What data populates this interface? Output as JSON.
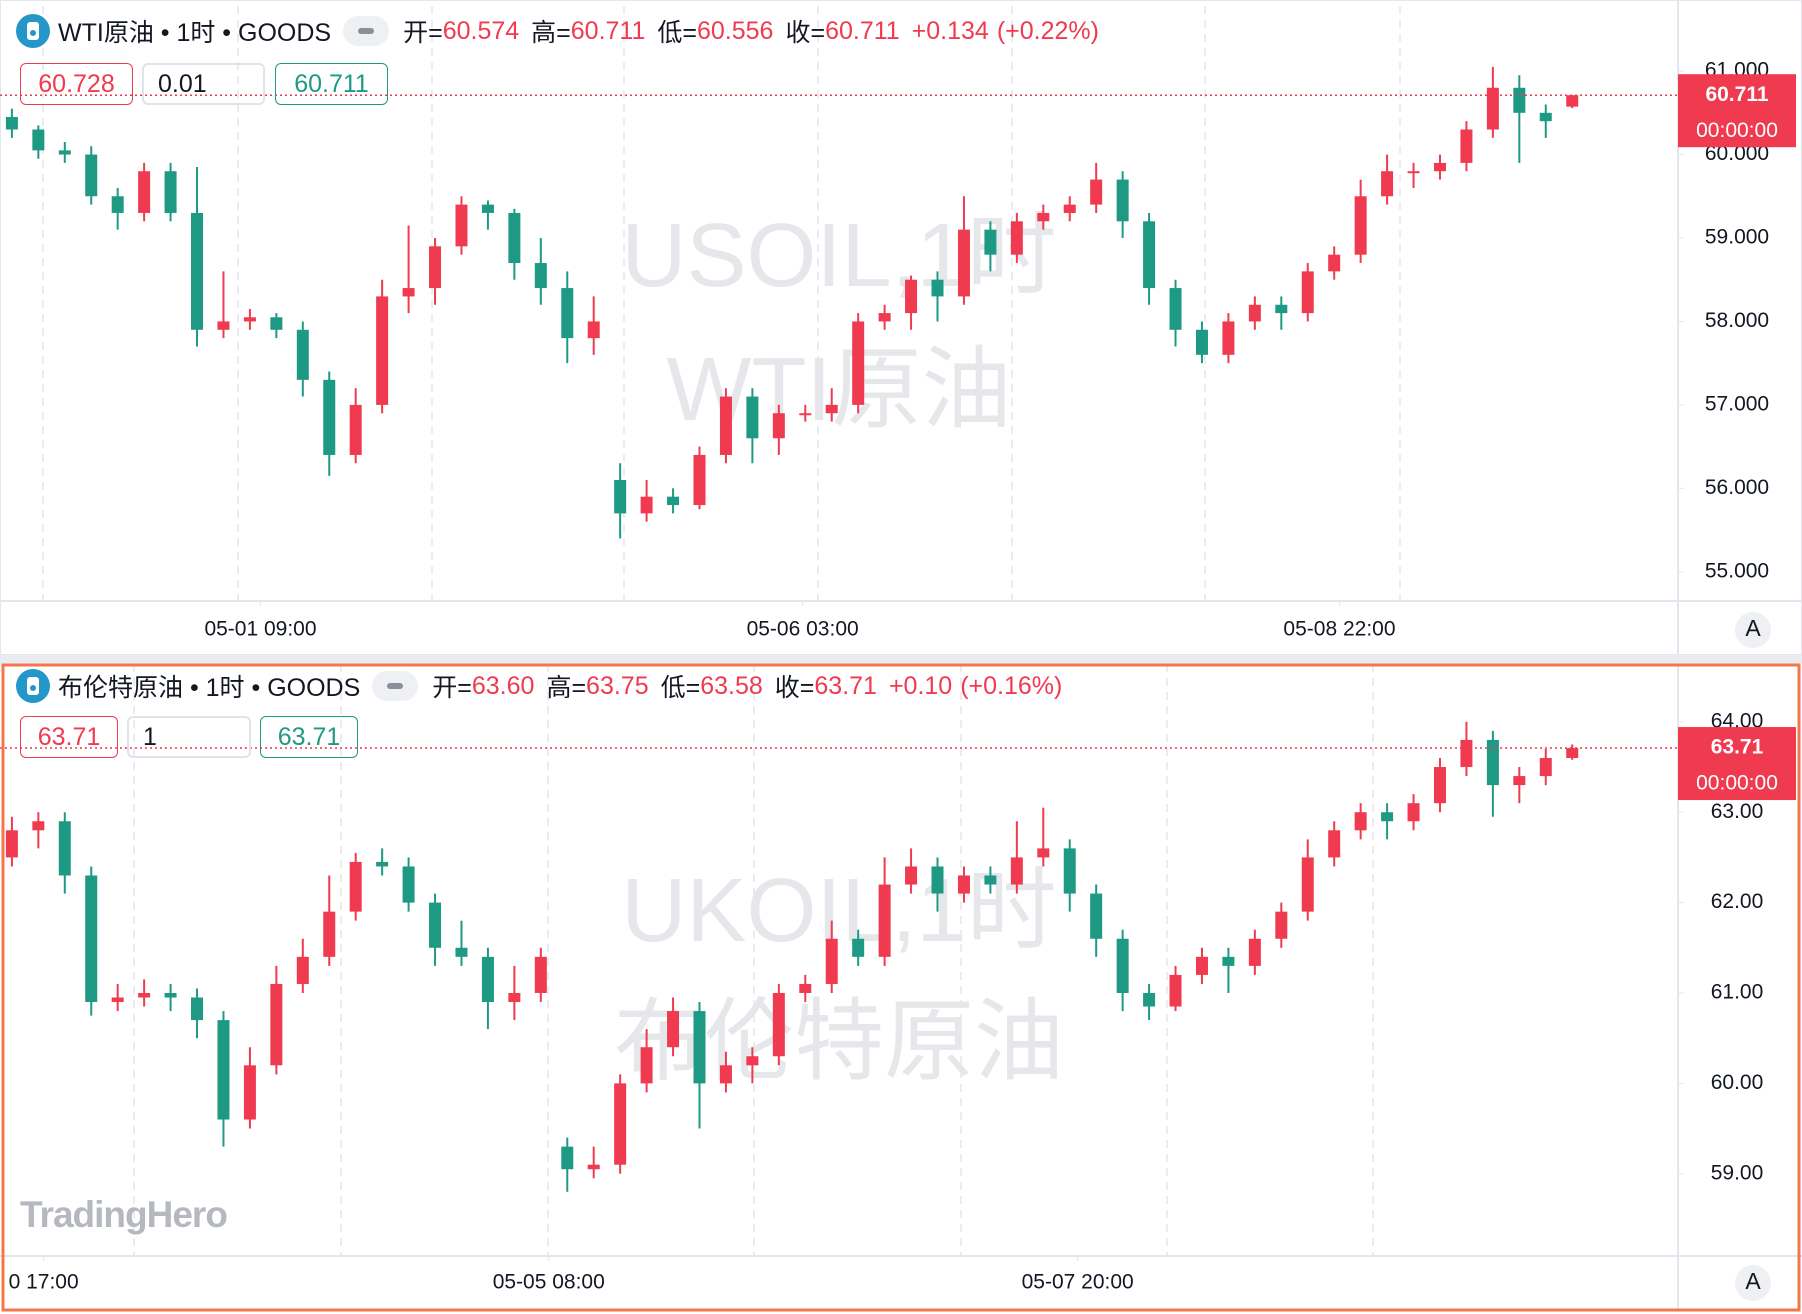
{
  "chart_data": [
    {
      "type": "candlestick",
      "title": "WTI原油 • 1时 • GOODS",
      "legend": {
        "open_label": "开=",
        "open": "60.574",
        "high_label": "高=",
        "high": "60.711",
        "low_label": "低=",
        "low": "60.556",
        "close_label": "收=",
        "close": "60.711",
        "change": "+0.134",
        "change_pct": "(+0.22%)"
      },
      "order": {
        "bid": "60.728",
        "qty": "0.01",
        "ask": "60.711"
      },
      "watermark": [
        "USOIL,1时",
        "WTI原油"
      ],
      "last_price": {
        "value": 60.711,
        "label": "60.711"
      },
      "countdown": "00:00:00",
      "axis_mode": "A",
      "up_color": "#ef3a4f",
      "down_color": "#1e9a84",
      "ylim": [
        54.65,
        61.78
      ],
      "yticks": [
        {
          "value": 55,
          "label": "55.000"
        },
        {
          "value": 56,
          "label": "56.000"
        },
        {
          "value": 57,
          "label": "57.000"
        },
        {
          "value": 58,
          "label": "58.000"
        },
        {
          "value": 59,
          "label": "59.000"
        },
        {
          "value": 60,
          "label": "60.000"
        },
        {
          "value": 61,
          "label": "61.000"
        }
      ],
      "xlim": [
        -0.45,
        63
      ],
      "xticks": [
        {
          "value": 9.4,
          "label": "05-01 09:00"
        },
        {
          "value": 29.9,
          "label": "05-06 03:00"
        },
        {
          "value": 50.2,
          "label": "05-08 22:00"
        }
      ],
      "ohlc": [
        [
          60.45,
          60.55,
          60.2,
          60.3
        ],
        [
          60.3,
          60.35,
          59.95,
          60.05
        ],
        [
          60.05,
          60.15,
          59.9,
          60.0
        ],
        [
          60.0,
          60.1,
          59.4,
          59.5
        ],
        [
          59.5,
          59.6,
          59.1,
          59.3
        ],
        [
          59.3,
          59.9,
          59.2,
          59.8
        ],
        [
          59.8,
          59.9,
          59.2,
          59.3
        ],
        [
          59.3,
          59.85,
          57.7,
          57.9
        ],
        [
          57.9,
          58.6,
          57.8,
          58.0
        ],
        [
          58.0,
          58.15,
          57.9,
          58.05
        ],
        [
          58.05,
          58.1,
          57.8,
          57.9
        ],
        [
          57.9,
          58.0,
          57.1,
          57.3
        ],
        [
          57.3,
          57.4,
          56.15,
          56.4
        ],
        [
          56.4,
          57.2,
          56.3,
          57.0
        ],
        [
          57.0,
          58.5,
          56.9,
          58.3
        ],
        [
          58.3,
          59.15,
          58.1,
          58.4
        ],
        [
          58.4,
          59.0,
          58.2,
          58.9
        ],
        [
          58.9,
          59.5,
          58.8,
          59.4
        ],
        [
          59.4,
          59.45,
          59.1,
          59.3
        ],
        [
          59.3,
          59.35,
          58.5,
          58.7
        ],
        [
          58.7,
          59.0,
          58.2,
          58.4
        ],
        [
          58.4,
          58.6,
          57.5,
          57.8
        ],
        [
          57.8,
          58.3,
          57.6,
          58.0
        ],
        [
          56.1,
          56.3,
          55.4,
          55.7
        ],
        [
          55.7,
          56.1,
          55.6,
          55.9
        ],
        [
          55.9,
          56.0,
          55.7,
          55.8
        ],
        [
          55.8,
          56.5,
          55.75,
          56.4
        ],
        [
          56.4,
          57.2,
          56.3,
          57.1
        ],
        [
          57.1,
          57.2,
          56.3,
          56.6
        ],
        [
          56.6,
          57.0,
          56.4,
          56.9
        ],
        [
          56.9,
          57.0,
          56.8,
          56.9
        ],
        [
          56.9,
          57.2,
          56.8,
          57.0
        ],
        [
          57.0,
          58.1,
          56.9,
          58.0
        ],
        [
          58.0,
          58.2,
          57.9,
          58.1
        ],
        [
          58.1,
          58.55,
          57.9,
          58.5
        ],
        [
          58.5,
          58.6,
          58.0,
          58.3
        ],
        [
          58.3,
          59.5,
          58.2,
          59.1
        ],
        [
          59.1,
          59.2,
          58.6,
          58.8
        ],
        [
          58.8,
          59.3,
          58.7,
          59.2
        ],
        [
          59.2,
          59.4,
          59.1,
          59.3
        ],
        [
          59.3,
          59.5,
          59.2,
          59.4
        ],
        [
          59.4,
          59.9,
          59.3,
          59.7
        ],
        [
          59.7,
          59.8,
          59.0,
          59.2
        ],
        [
          59.2,
          59.3,
          58.2,
          58.4
        ],
        [
          58.4,
          58.5,
          57.7,
          57.9
        ],
        [
          57.9,
          58.0,
          57.5,
          57.6
        ],
        [
          57.6,
          58.1,
          57.5,
          58.0
        ],
        [
          58.0,
          58.3,
          57.9,
          58.2
        ],
        [
          58.2,
          58.3,
          57.9,
          58.1
        ],
        [
          58.1,
          58.7,
          58.0,
          58.6
        ],
        [
          58.6,
          58.9,
          58.5,
          58.8
        ],
        [
          58.8,
          59.7,
          58.7,
          59.5
        ],
        [
          59.5,
          60.0,
          59.4,
          59.8
        ],
        [
          59.8,
          59.9,
          59.6,
          59.8
        ],
        [
          59.8,
          60.0,
          59.7,
          59.9
        ],
        [
          59.9,
          60.4,
          59.8,
          60.3
        ],
        [
          60.3,
          61.05,
          60.2,
          60.8
        ],
        [
          60.8,
          60.95,
          59.9,
          60.5
        ],
        [
          60.5,
          60.6,
          60.2,
          60.4
        ],
        [
          60.574,
          60.711,
          60.556,
          60.711
        ]
      ]
    },
    {
      "type": "candlestick",
      "title": "布伦特原油 • 1时 • GOODS",
      "legend": {
        "open_label": "开=",
        "open": "63.60",
        "high_label": "高=",
        "high": "63.75",
        "low_label": "低=",
        "low": "63.58",
        "close_label": "收=",
        "close": "63.71",
        "change": "+0.10",
        "change_pct": "(+0.16%)"
      },
      "order": {
        "bid": "63.71",
        "qty": "1",
        "ask": "63.71"
      },
      "watermark": [
        "UKOIL,1时",
        "布伦特原油"
      ],
      "last_price": {
        "value": 63.71,
        "label": "63.71"
      },
      "countdown": "00:00:00",
      "axis_mode": "A",
      "up_color": "#ef3a4f",
      "down_color": "#1e9a84",
      "ylim": [
        58.09,
        64.64
      ],
      "yticks": [
        {
          "value": 59,
          "label": "59.00"
        },
        {
          "value": 60,
          "label": "60.00"
        },
        {
          "value": 61,
          "label": "61.00"
        },
        {
          "value": 62,
          "label": "62.00"
        },
        {
          "value": 63,
          "label": "63.00"
        },
        {
          "value": 64,
          "label": "64.00"
        }
      ],
      "xlim": [
        -0.45,
        63
      ],
      "xticks": [
        {
          "value": 1.2,
          "label": "0 17:00"
        },
        {
          "value": 20.3,
          "label": "05-05 08:00"
        },
        {
          "value": 40.3,
          "label": "05-07 20:00"
        }
      ],
      "ohlc": [
        [
          62.5,
          62.95,
          62.4,
          62.8
        ],
        [
          62.8,
          63.0,
          62.6,
          62.9
        ],
        [
          62.9,
          63.0,
          62.1,
          62.3
        ],
        [
          62.3,
          62.4,
          60.75,
          60.9
        ],
        [
          60.9,
          61.1,
          60.8,
          60.95
        ],
        [
          60.95,
          61.15,
          60.85,
          61.0
        ],
        [
          61.0,
          61.1,
          60.8,
          60.95
        ],
        [
          60.95,
          61.05,
          60.5,
          60.7
        ],
        [
          60.7,
          60.8,
          59.3,
          59.6
        ],
        [
          59.6,
          60.4,
          59.5,
          60.2
        ],
        [
          60.2,
          61.3,
          60.1,
          61.1
        ],
        [
          61.1,
          61.6,
          61.0,
          61.4
        ],
        [
          61.4,
          62.3,
          61.3,
          61.9
        ],
        [
          61.9,
          62.55,
          61.8,
          62.45
        ],
        [
          62.45,
          62.6,
          62.3,
          62.4
        ],
        [
          62.4,
          62.5,
          61.9,
          62.0
        ],
        [
          62.0,
          62.1,
          61.3,
          61.5
        ],
        [
          61.5,
          61.8,
          61.3,
          61.4
        ],
        [
          61.4,
          61.5,
          60.6,
          60.9
        ],
        [
          60.9,
          61.3,
          60.7,
          61.0
        ],
        [
          61.0,
          61.5,
          60.9,
          61.4
        ],
        [
          59.3,
          59.4,
          58.8,
          59.05
        ],
        [
          59.05,
          59.3,
          58.95,
          59.1
        ],
        [
          59.1,
          60.1,
          59.0,
          60.0
        ],
        [
          60.0,
          60.6,
          59.9,
          60.4
        ],
        [
          60.4,
          60.95,
          60.3,
          60.8
        ],
        [
          60.8,
          60.9,
          59.5,
          60.0
        ],
        [
          60.0,
          60.35,
          59.9,
          60.2
        ],
        [
          60.2,
          60.4,
          60.0,
          60.3
        ],
        [
          60.3,
          61.1,
          60.2,
          61.0
        ],
        [
          61.0,
          61.2,
          60.9,
          61.1
        ],
        [
          61.1,
          61.8,
          61.0,
          61.6
        ],
        [
          61.6,
          61.7,
          61.3,
          61.4
        ],
        [
          61.4,
          62.5,
          61.3,
          62.2
        ],
        [
          62.2,
          62.6,
          62.1,
          62.4
        ],
        [
          62.4,
          62.5,
          61.9,
          62.1
        ],
        [
          62.1,
          62.4,
          62.0,
          62.3
        ],
        [
          62.3,
          62.4,
          62.1,
          62.2
        ],
        [
          62.2,
          62.9,
          62.1,
          62.5
        ],
        [
          62.5,
          63.05,
          62.4,
          62.6
        ],
        [
          62.6,
          62.7,
          61.9,
          62.1
        ],
        [
          62.1,
          62.2,
          61.4,
          61.6
        ],
        [
          61.6,
          61.7,
          60.8,
          61.0
        ],
        [
          61.0,
          61.1,
          60.7,
          60.85
        ],
        [
          60.85,
          61.3,
          60.8,
          61.2
        ],
        [
          61.2,
          61.5,
          61.1,
          61.4
        ],
        [
          61.4,
          61.5,
          61.0,
          61.3
        ],
        [
          61.3,
          61.7,
          61.2,
          61.6
        ],
        [
          61.6,
          62.0,
          61.5,
          61.9
        ],
        [
          61.9,
          62.7,
          61.8,
          62.5
        ],
        [
          62.5,
          62.9,
          62.4,
          62.8
        ],
        [
          62.8,
          63.1,
          62.7,
          63.0
        ],
        [
          63.0,
          63.1,
          62.7,
          62.9
        ],
        [
          62.9,
          63.2,
          62.8,
          63.1
        ],
        [
          63.1,
          63.6,
          63.0,
          63.5
        ],
        [
          63.5,
          64.0,
          63.4,
          63.8
        ],
        [
          63.8,
          63.9,
          62.95,
          63.3
        ],
        [
          63.3,
          63.5,
          63.1,
          63.4
        ],
        [
          63.4,
          63.7,
          63.3,
          63.6
        ],
        [
          63.6,
          63.75,
          63.58,
          63.71
        ]
      ]
    }
  ],
  "logo": "TradingHero"
}
